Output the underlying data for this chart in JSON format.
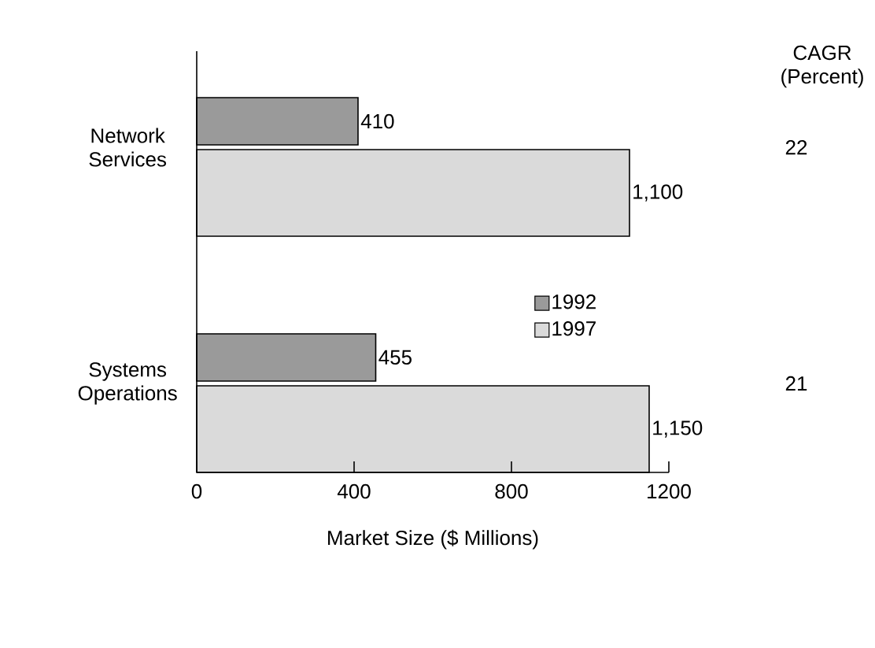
{
  "chart_data": {
    "type": "bar",
    "orientation": "horizontal",
    "xlabel": "Market Size ($ Millions)",
    "categories": [
      "Network Services",
      "Systems Operations"
    ],
    "series": [
      {
        "name": "1992",
        "color": "#9a9a9a",
        "values": [
          410,
          455
        ],
        "value_labels": [
          "410",
          "455"
        ]
      },
      {
        "name": "1997",
        "color": "#dadada",
        "values": [
          1100,
          1150
        ],
        "value_labels": [
          "1,100",
          "1,150"
        ]
      }
    ],
    "xlim": [
      0,
      1200
    ],
    "xticks": [
      0,
      400,
      800,
      1200
    ],
    "grid": false,
    "legend": "right",
    "annotations": [
      "CAGR (Percent)",
      "22",
      "21"
    ]
  }
}
